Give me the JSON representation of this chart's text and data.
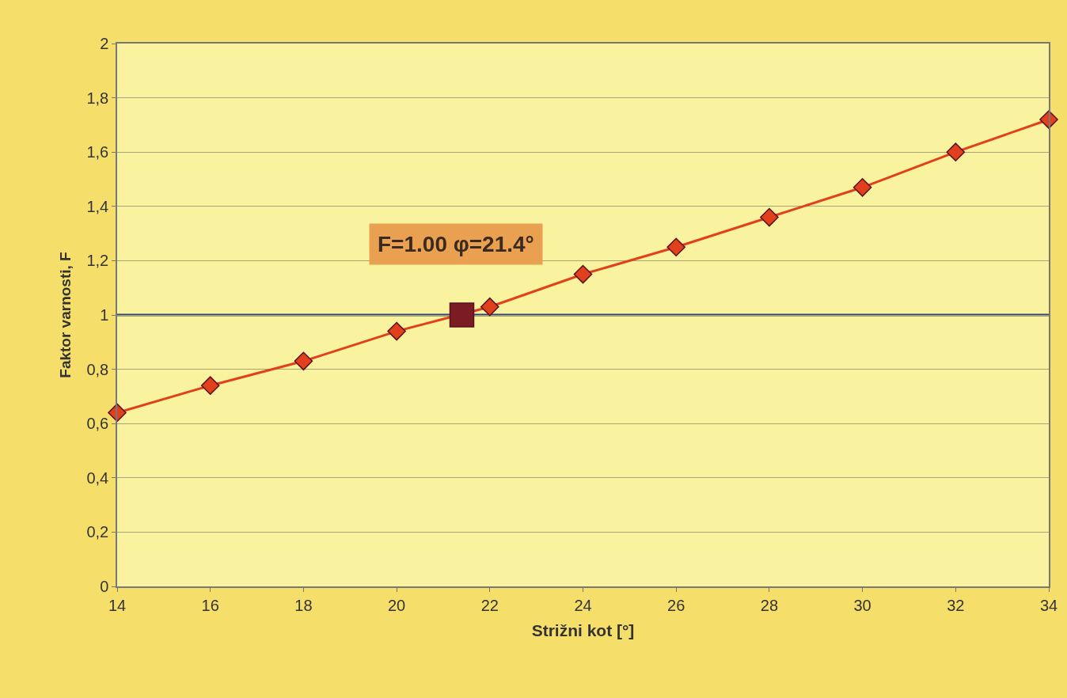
{
  "chart_data": {
    "type": "line",
    "xlabel": "Strižni kot [°]",
    "ylabel": "Faktor varnosti, F",
    "x": [
      14,
      16,
      18,
      20,
      22,
      24,
      26,
      28,
      30,
      32,
      34
    ],
    "series": [
      {
        "color": "#e0401c",
        "values": [
          0.64,
          0.74,
          0.83,
          0.94,
          1.03,
          1.15,
          1.25,
          1.36,
          1.47,
          1.6,
          1.72
        ],
        "marker": "diamond"
      },
      {
        "type": "scatter",
        "x": [
          21.4
        ],
        "color": "#7a1c22",
        "values": [
          1.0
        ],
        "marker": "square"
      }
    ],
    "ref_lines": [
      {
        "axis": "y",
        "value": 1,
        "label": null,
        "color": "#2e4470"
      }
    ],
    "annotations": [
      "F=1.00 φ=21.4°"
    ],
    "xlim": [
      14,
      34
    ],
    "xticks": [
      14,
      16,
      18,
      20,
      22,
      24,
      26,
      28,
      30,
      32,
      34
    ],
    "ylim": [
      0,
      2
    ],
    "yticks": [
      0,
      {
        "value": 0.2,
        "label": "0,2"
      },
      {
        "value": 0.4,
        "label": "0,4"
      },
      {
        "value": 0.6,
        "label": "0,6"
      },
      {
        "value": 0.8,
        "label": "0,8"
      },
      1,
      {
        "value": 1.2,
        "label": "1,2"
      },
      {
        "value": 1.4,
        "label": "1,4"
      },
      {
        "value": 1.6,
        "label": "1,6"
      },
      {
        "value": 1.8,
        "label": "1,8"
      },
      2
    ],
    "grid": "y"
  }
}
